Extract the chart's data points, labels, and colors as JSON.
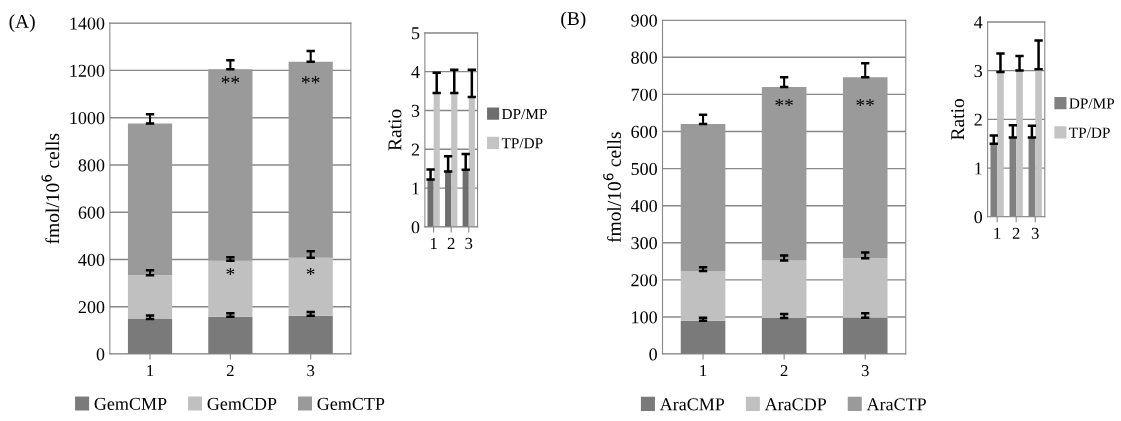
{
  "chart_data": [
    {
      "type": "bar",
      "title": "(A)",
      "ylabel": "fmol/10$^{6}$ cells",
      "stacked": true,
      "categories": [
        "1",
        "2",
        "3"
      ],
      "ylim": [
        0,
        1400
      ],
      "yticks": [
        0,
        200,
        400,
        600,
        800,
        1000,
        1200,
        1400
      ],
      "grid": "y",
      "legend": "bottom",
      "series": [
        {
          "name": "GemCMP",
          "color": "#7a7a7a",
          "values": [
            148,
            158,
            162
          ],
          "errors": [
            15,
            15,
            16
          ]
        },
        {
          "name": "GemCDP",
          "color": "#c0c0c0",
          "values": [
            185,
            237,
            246
          ],
          "errors": [
            22,
            15,
            27
          ]
        },
        {
          "name": "GemCTP",
          "color": "#9a9a9a",
          "values": [
            642,
            810,
            829
          ],
          "errors": [
            40,
            38,
            45
          ]
        }
      ],
      "annotations": [
        "**",
        "**",
        "*",
        "*"
      ]
    },
    {
      "type": "bar",
      "ylabel": "Ratio",
      "categories": [
        "1",
        "2",
        "3"
      ],
      "ylim": [
        0,
        5
      ],
      "yticks": [
        0,
        1,
        2,
        3,
        4,
        5
      ],
      "grid": "y",
      "legend": "right",
      "series": [
        {
          "name": "DP/MP",
          "color": "#6e6e6e",
          "values": [
            1.22,
            1.43,
            1.47
          ],
          "errors": [
            0.26,
            0.39,
            0.41
          ]
        },
        {
          "name": "TP/DP",
          "color": "#c4c4c4",
          "values": [
            3.45,
            3.45,
            3.35
          ],
          "errors": [
            0.52,
            0.6,
            0.7
          ]
        }
      ]
    },
    {
      "type": "bar",
      "title": "(B)",
      "ylabel": "fmol/10$^{6}$ cells",
      "stacked": true,
      "categories": [
        "1",
        "2",
        "3"
      ],
      "ylim": [
        0,
        900
      ],
      "yticks": [
        0,
        100,
        200,
        300,
        400,
        500,
        600,
        700,
        800,
        900
      ],
      "grid": "y",
      "legend": "bottom",
      "series": [
        {
          "name": "AraCMP",
          "color": "#7a7a7a",
          "values": [
            90,
            97,
            98
          ],
          "errors": [
            8,
            11,
            12
          ]
        },
        {
          "name": "AraCDP",
          "color": "#c0c0c0",
          "values": [
            134,
            155,
            160
          ],
          "errors": [
            10,
            14,
            16
          ]
        },
        {
          "name": "AraCTP",
          "color": "#9a9a9a",
          "values": [
            396,
            468,
            488
          ],
          "errors": [
            25,
            26,
            38
          ]
        }
      ],
      "annotations": [
        "**",
        "**"
      ]
    },
    {
      "type": "bar",
      "ylabel": "Ratio",
      "categories": [
        "1",
        "2",
        "3"
      ],
      "ylim": [
        0,
        4
      ],
      "yticks": [
        0,
        1,
        2,
        3,
        4
      ],
      "grid": "y",
      "legend": "right",
      "series": [
        {
          "name": "DP/MP",
          "color": "#808080",
          "values": [
            1.5,
            1.63,
            1.63
          ],
          "errors": [
            0.17,
            0.25,
            0.24
          ]
        },
        {
          "name": "TP/DP",
          "color": "#c4c4c4",
          "values": [
            2.97,
            3.0,
            3.03
          ],
          "errors": [
            0.38,
            0.3,
            0.59
          ]
        }
      ]
    }
  ]
}
